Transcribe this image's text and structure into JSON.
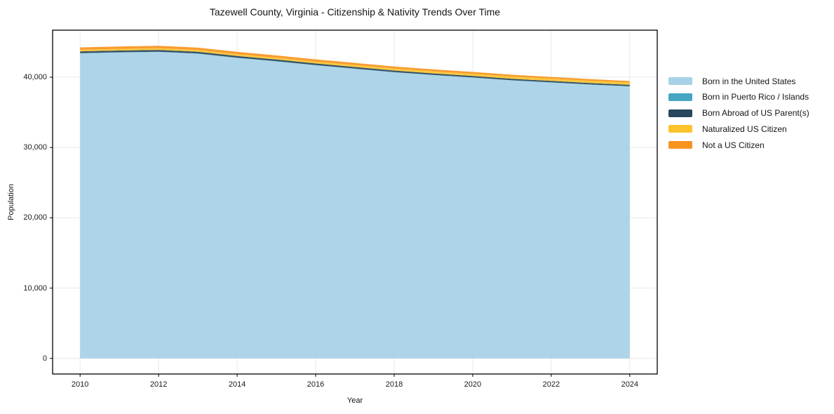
{
  "figure": {
    "title": "Tazewell County, Virginia - Citizenship & Nativity Trends Over Time"
  },
  "chart_data": {
    "type": "area",
    "stacked": true,
    "title": "Tazewell County, Virginia - Citizenship & Nativity Trends Over Time",
    "xlabel": "Year",
    "ylabel": "Population",
    "x": [
      2010,
      2011,
      2012,
      2013,
      2014,
      2015,
      2016,
      2017,
      2018,
      2019,
      2020,
      2021,
      2022,
      2023,
      2024
    ],
    "series": [
      {
        "name": "Born in the United States",
        "color": "#a7d1e6",
        "values": [
          43400,
          43520,
          43600,
          43350,
          42750,
          42250,
          41700,
          41200,
          40700,
          40300,
          39950,
          39550,
          39250,
          38950,
          38700
        ]
      },
      {
        "name": "Born in Puerto Rico / Islands",
        "color": "#45a6c4",
        "values": [
          30,
          30,
          30,
          30,
          30,
          30,
          25,
          25,
          25,
          25,
          20,
          20,
          20,
          20,
          20
        ]
      },
      {
        "name": "Born Abroad of US Parent(s)",
        "color": "#27475c",
        "values": [
          250,
          250,
          255,
          250,
          245,
          240,
          235,
          230,
          225,
          220,
          215,
          210,
          205,
          200,
          200
        ]
      },
      {
        "name": "Naturalized US Citizen",
        "color": "#fcc32f",
        "values": [
          230,
          240,
          250,
          255,
          260,
          265,
          270,
          280,
          290,
          295,
          300,
          310,
          315,
          320,
          330
        ]
      },
      {
        "name": "Not a US Citizen",
        "color": "#f7941f",
        "values": [
          330,
          330,
          335,
          330,
          325,
          320,
          310,
          300,
          290,
          280,
          270,
          260,
          250,
          240,
          210
        ]
      }
    ],
    "xticks": {
      "values": [
        2010,
        2012,
        2014,
        2016,
        2018,
        2020,
        2022,
        2024
      ],
      "labels": [
        "2010",
        "2012",
        "2014",
        "2016",
        "2018",
        "2020",
        "2022",
        "2024"
      ]
    },
    "yticks": {
      "values": [
        0,
        10000,
        20000,
        30000,
        40000
      ],
      "labels": [
        "0",
        "10,000",
        "20,000",
        "30,000",
        "40,000"
      ]
    },
    "xlim": [
      2009.3,
      2024.7
    ],
    "ylim": [
      -2224,
      46694
    ],
    "grid": true,
    "grid_color": "#e8e8e8",
    "spine_color": "#000000",
    "fill_opacity": 0.93,
    "legend_position": "right"
  }
}
